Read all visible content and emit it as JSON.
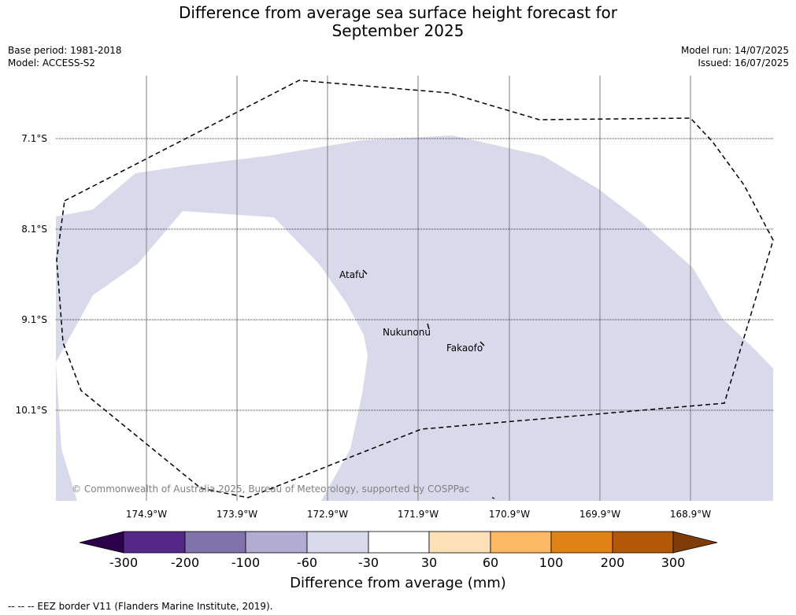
{
  "title_line1": "Difference from average sea surface height forecast for",
  "title_line2": "September 2025",
  "meta_left": {
    "base_period": "Base period: 1981-2018",
    "model": "Model: ACCESS-S2"
  },
  "meta_right": {
    "model_run": "Model run: 14/07/2025",
    "issued": "Issued: 16/07/2025"
  },
  "lat_labels": [
    "7.1°S",
    "8.1°S",
    "9.1°S",
    "10.1°S"
  ],
  "lon_labels": [
    "174.9°W",
    "173.9°W",
    "172.9°W",
    "171.9°W",
    "170.9°W",
    "169.9°W",
    "168.9°W"
  ],
  "places": {
    "atafu": "Atafu",
    "nukunonu": "Nukunonu",
    "fakaofo": "Fakaofo"
  },
  "copyright": "© Commonwealth of Australia 2025, Bureau of Meteorology, supported by COSPPac",
  "colorbar": {
    "ticks": [
      "-300",
      "-200",
      "-100",
      "-60",
      "-30",
      "30",
      "60",
      "100",
      "200",
      "300"
    ],
    "colors": [
      "#2d004b",
      "#542788",
      "#8073ac",
      "#b2abd2",
      "#d8daeb",
      "#ffffff",
      "#fee0b6",
      "#fdb863",
      "#e08214",
      "#b35806",
      "#7f3b08"
    ],
    "title": "Difference from average (mm)"
  },
  "eez_note": "--  --  -- EEZ border V11 (Flanders Marine Institute, 2019).",
  "field_color": "#d8daeb"
}
